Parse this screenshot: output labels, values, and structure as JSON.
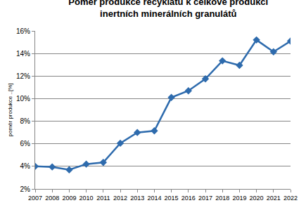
{
  "chart_data": {
    "type": "line",
    "title": "Poměr produkce recyklátů k celkové produkci\ninertních minerálních granulátů",
    "y_label": "poměr produkce ..[%]",
    "categories": [
      "2007",
      "2008",
      "2009",
      "2010",
      "2011",
      "2012",
      "2013",
      "2014",
      "2015",
      "2016",
      "2017",
      "2018",
      "2019",
      "2020",
      "2021",
      "2022"
    ],
    "values": [
      4.0,
      3.95,
      3.7,
      4.2,
      4.35,
      6.05,
      7.0,
      7.15,
      10.1,
      10.7,
      11.75,
      13.35,
      12.95,
      15.2,
      14.15,
      15.1
    ],
    "color": "#2e6bad",
    "marker": "diamond",
    "ylim": [
      2,
      16
    ],
    "yticks": [
      {
        "value": 2,
        "label": "2%"
      },
      {
        "value": 4,
        "label": "4%"
      },
      {
        "value": 6,
        "label": "6%"
      },
      {
        "value": 8,
        "label": "8%"
      },
      {
        "value": 10,
        "label": "10%"
      },
      {
        "value": 12,
        "label": "12%"
      },
      {
        "value": 14,
        "label": "14%"
      },
      {
        "value": 16,
        "label": "16%"
      }
    ],
    "grid": true
  }
}
